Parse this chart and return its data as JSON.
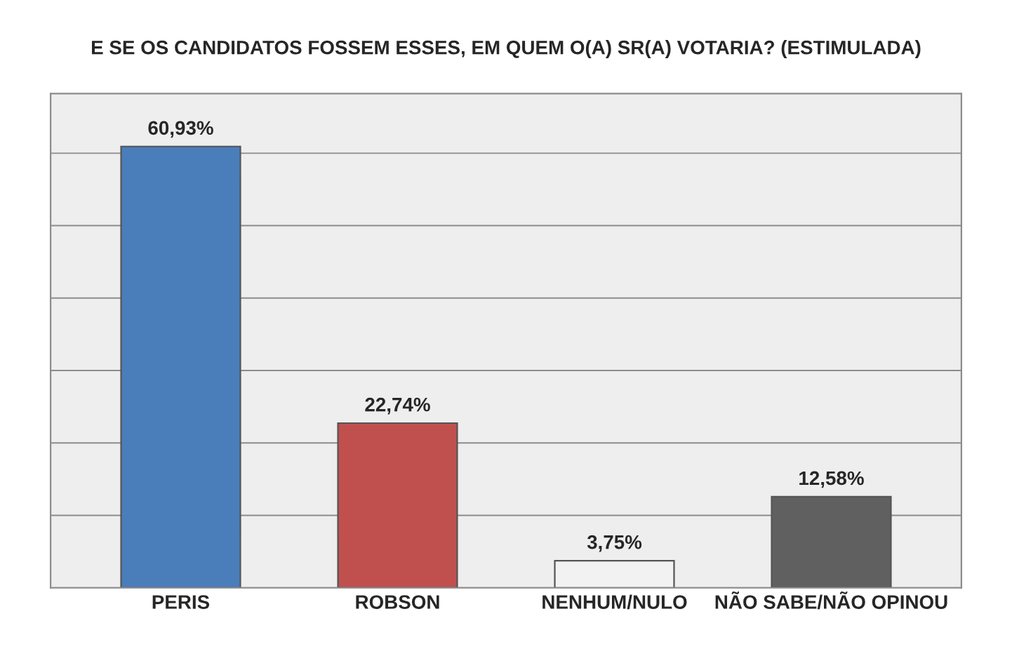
{
  "chart_data": {
    "type": "bar",
    "title": "E SE OS CANDIDATOS FOSSEM ESSES, EM QUEM O(A) SR(A) VOTARIA? (ESTIMULADA)",
    "categories": [
      "PERIS",
      "ROBSON",
      "NENHUM/NULO",
      "NÃO SABE/NÃO OPINOU"
    ],
    "values": [
      60.93,
      22.74,
      3.75,
      12.58
    ],
    "value_labels": [
      "60,93%",
      "22,74%",
      "3,75%",
      "12,58%"
    ],
    "colors": [
      "#4a7ebb",
      "#c0504d",
      "#f2f2f2",
      "#606060"
    ],
    "grid": "y",
    "tick_labels": "x"
  }
}
